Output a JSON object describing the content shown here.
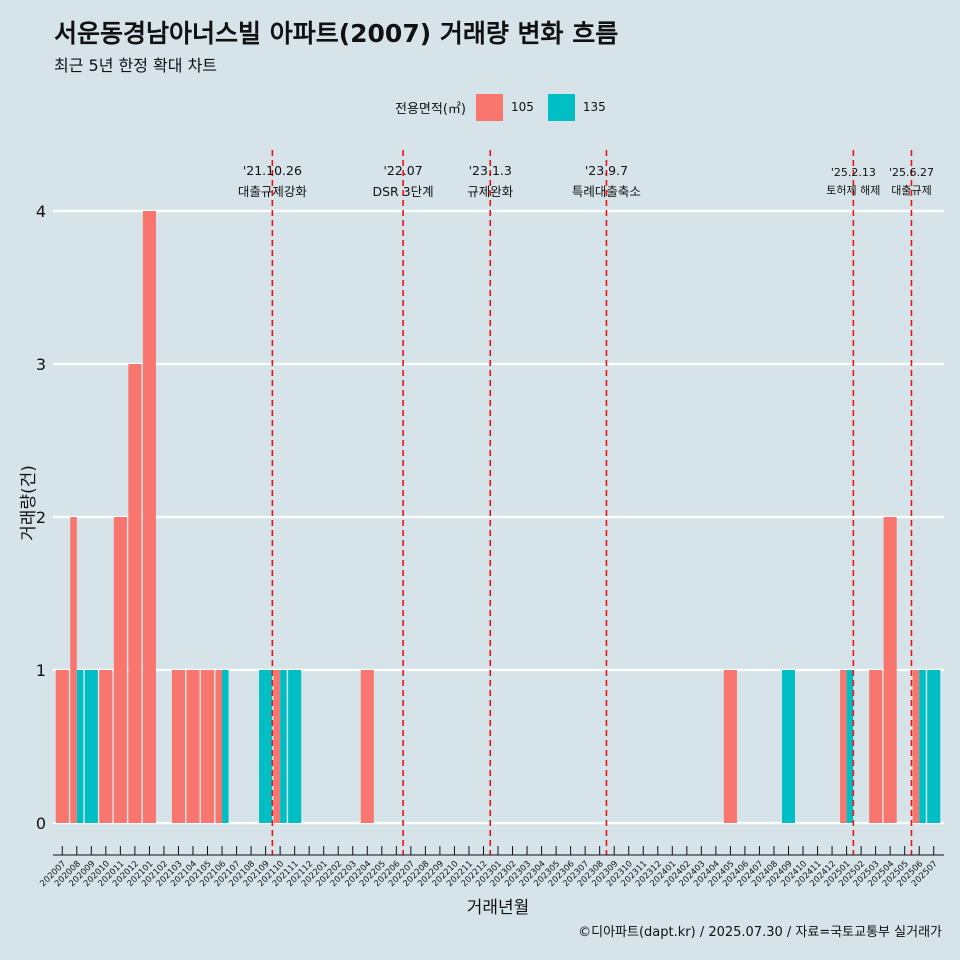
{
  "title": "서운동경남아너스빌 아파트(2007) 거래량 변화 흐름",
  "subtitle": "최근 5년 한정 확대 차트",
  "caption": "©디아파트(dapt.kr) / 2025.07.30 / 자료=국토교통부 실거래가",
  "legend": {
    "title": "전용면적(㎡)",
    "placement": "top",
    "items": [
      {
        "label": "105",
        "color": "#f8766d"
      },
      {
        "label": "135",
        "color": "#00bfc4"
      }
    ]
  },
  "chart_data": {
    "type": "bar",
    "stacking": "dodge",
    "xlabel": "거래년월",
    "ylabel": "거래량(건)",
    "ylim": [
      0,
      4
    ],
    "yticks": [
      0,
      1,
      2,
      3,
      4
    ],
    "grid": true,
    "categories": [
      "202007",
      "202008",
      "202009",
      "202010",
      "202011",
      "202012",
      "202101",
      "202102",
      "202103",
      "202104",
      "202105",
      "202106",
      "202107",
      "202108",
      "202109",
      "202110",
      "202111",
      "202112",
      "202201",
      "202202",
      "202203",
      "202204",
      "202205",
      "202206",
      "202207",
      "202208",
      "202209",
      "202210",
      "202211",
      "202212",
      "202301",
      "202302",
      "202303",
      "202304",
      "202305",
      "202306",
      "202307",
      "202308",
      "202309",
      "202310",
      "202311",
      "202312",
      "202401",
      "202402",
      "202403",
      "202404",
      "202405",
      "202406",
      "202407",
      "202408",
      "202409",
      "202410",
      "202411",
      "202412",
      "202501",
      "202502",
      "202503",
      "202504",
      "202505",
      "202506",
      "202507"
    ],
    "series": [
      {
        "name": "105",
        "color": "#f8766d",
        "values": [
          1,
          2,
          0,
          1,
          2,
          3,
          4,
          0,
          1,
          1,
          1,
          1,
          0,
          0,
          0,
          1,
          0,
          0,
          0,
          0,
          0,
          1,
          0,
          0,
          0,
          0,
          0,
          0,
          0,
          0,
          0,
          0,
          0,
          0,
          0,
          0,
          0,
          0,
          0,
          0,
          0,
          0,
          0,
          0,
          0,
          0,
          1,
          0,
          0,
          0,
          0,
          0,
          0,
          0,
          1,
          0,
          1,
          2,
          0,
          1,
          0
        ]
      },
      {
        "name": "135",
        "color": "#00bfc4",
        "values": [
          0,
          1,
          1,
          0,
          0,
          0,
          0,
          0,
          0,
          0,
          0,
          1,
          0,
          0,
          1,
          1,
          1,
          0,
          0,
          0,
          0,
          0,
          0,
          0,
          0,
          0,
          0,
          0,
          0,
          0,
          0,
          0,
          0,
          0,
          0,
          0,
          0,
          0,
          0,
          0,
          0,
          0,
          0,
          0,
          0,
          0,
          0,
          0,
          0,
          0,
          1,
          0,
          0,
          0,
          1,
          0,
          0,
          0,
          0,
          1,
          1
        ]
      }
    ],
    "events": [
      {
        "date": "'21.10.26",
        "label": "대출규제강화",
        "x": "202110"
      },
      {
        "date": "'22.07",
        "label": "DSR 3단계",
        "x": "202207"
      },
      {
        "date": "'23.1.3",
        "label": "규제완화",
        "x": "202301"
      },
      {
        "date": "'23.9.7",
        "label": "특례대출축소",
        "x": "202309"
      },
      {
        "date": "'25.2.13",
        "label": "토허제 해제",
        "x": "202502"
      },
      {
        "date": "'25.6.27",
        "label": "대출규제",
        "x": "202506"
      }
    ]
  }
}
